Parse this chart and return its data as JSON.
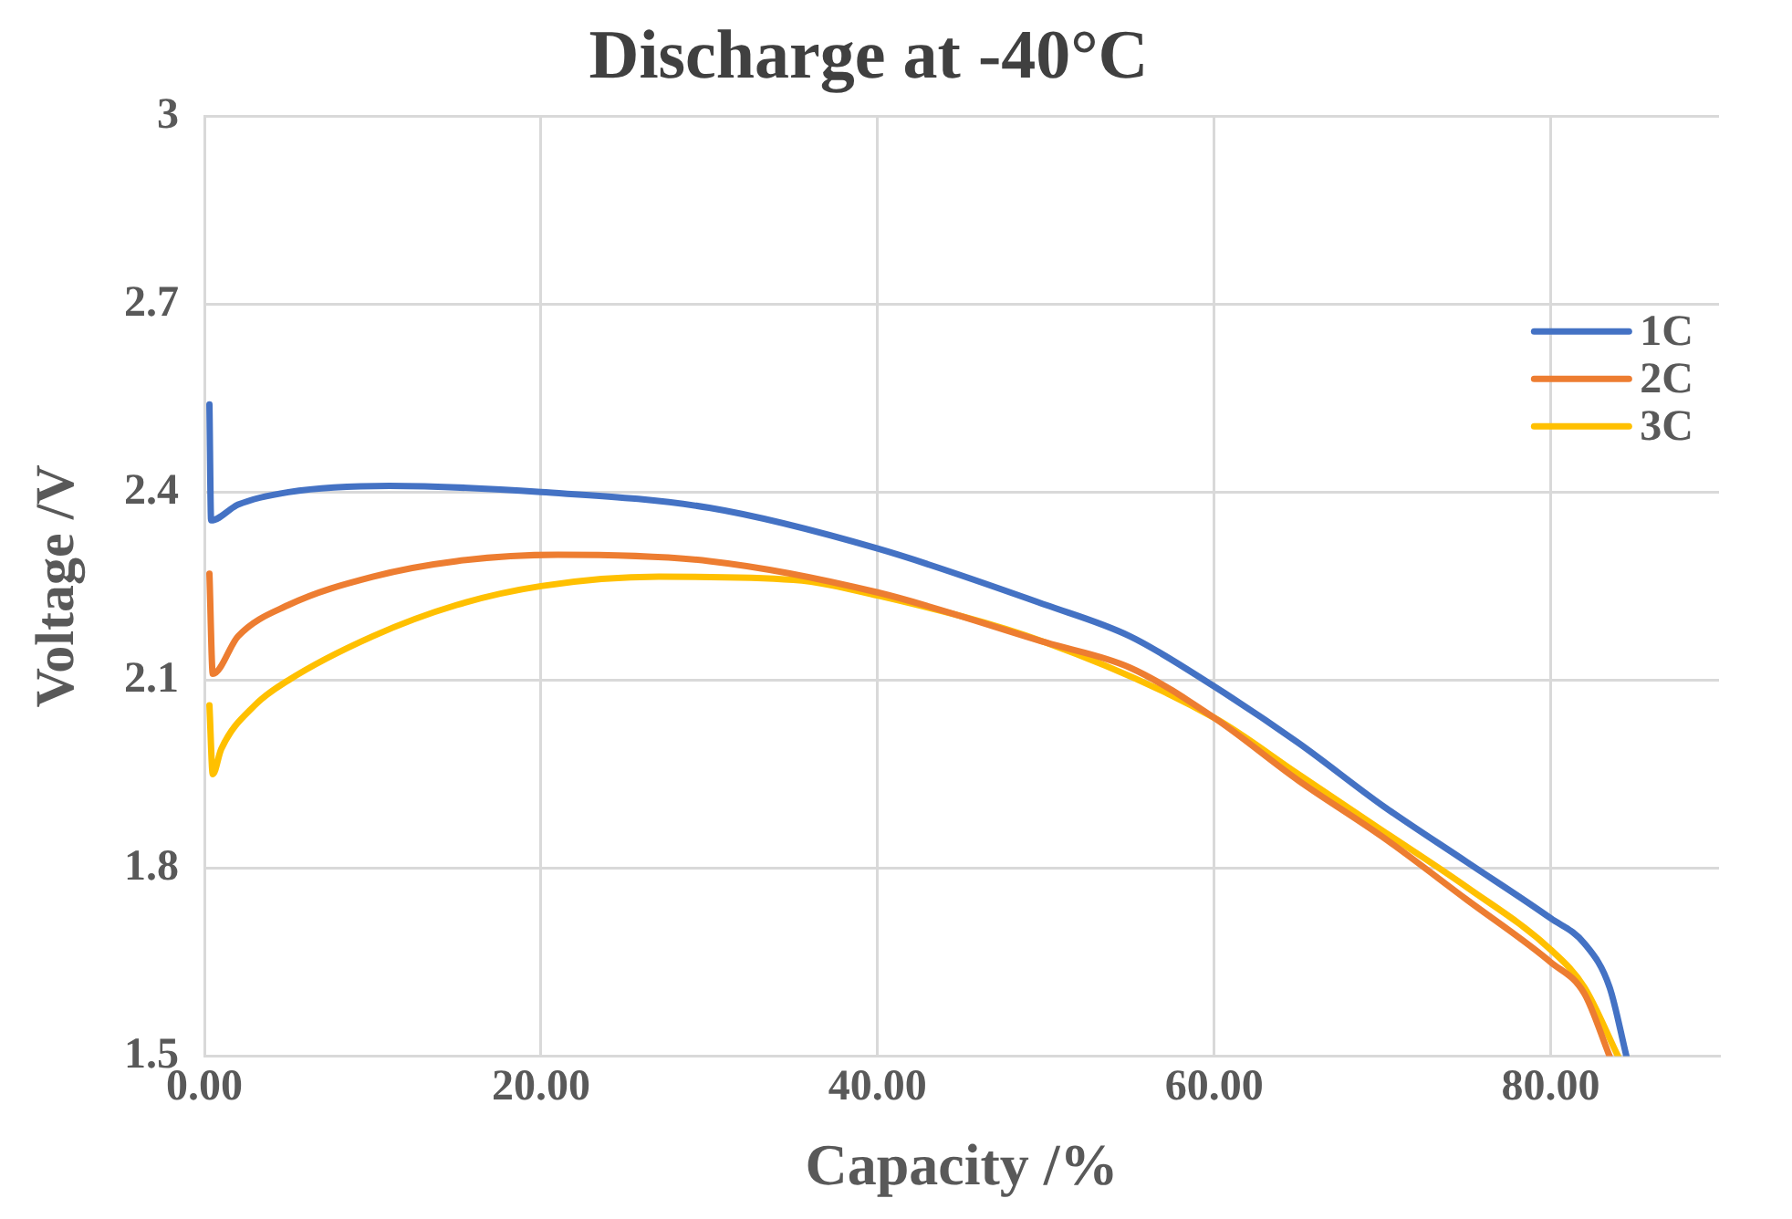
{
  "chart_data": {
    "type": "line",
    "title": "Discharge at -40°C",
    "xlabel": "Capacity /%",
    "ylabel": "Voltage /V",
    "xlim": [
      0,
      90
    ],
    "xticks": [
      {
        "value": 0,
        "label": "0.00"
      },
      {
        "value": 20,
        "label": "20.00"
      },
      {
        "value": 40,
        "label": "40.00"
      },
      {
        "value": 60,
        "label": "60.00"
      },
      {
        "value": 80,
        "label": "80.00"
      }
    ],
    "ylim": [
      1.5,
      3
    ],
    "yticks": [
      1.5,
      1.8,
      2.1,
      2.4,
      2.7,
      3
    ],
    "grid": true,
    "legend": "top right",
    "marker": "none",
    "line_style": "solid",
    "series": [
      {
        "name": "1C",
        "color": "#4472c4",
        "x": [
          0.3,
          0.4,
          2,
          5,
          11,
          20,
          30,
          40,
          50,
          55,
          60,
          65,
          70,
          75,
          80,
          82,
          83.5,
          84.5
        ],
        "values": [
          2.54,
          2.355,
          2.38,
          2.4,
          2.41,
          2.4,
          2.375,
          2.31,
          2.22,
          2.17,
          2.09,
          2.0,
          1.9,
          1.81,
          1.72,
          1.68,
          1.61,
          1.5
        ]
      },
      {
        "name": "2C",
        "color": "#ed7d31",
        "x": [
          0.3,
          0.5,
          2,
          5,
          10,
          15,
          21,
          30,
          40,
          50,
          55,
          60,
          65,
          70,
          75,
          80,
          82,
          83.5
        ],
        "values": [
          2.27,
          2.11,
          2.17,
          2.22,
          2.265,
          2.29,
          2.3,
          2.29,
          2.24,
          2.16,
          2.12,
          2.04,
          1.94,
          1.85,
          1.75,
          1.65,
          1.6,
          1.5
        ]
      },
      {
        "name": "3C",
        "color": "#ffc000",
        "x": [
          0.3,
          0.5,
          1,
          3,
          5,
          10,
          15,
          20,
          27,
          35,
          40,
          50,
          60,
          65,
          70,
          75,
          80,
          82,
          84
        ],
        "values": [
          2.06,
          1.95,
          1.99,
          2.06,
          2.1,
          2.17,
          2.22,
          2.25,
          2.265,
          2.26,
          2.235,
          2.16,
          2.04,
          1.95,
          1.86,
          1.77,
          1.67,
          1.61,
          1.5
        ]
      }
    ]
  }
}
